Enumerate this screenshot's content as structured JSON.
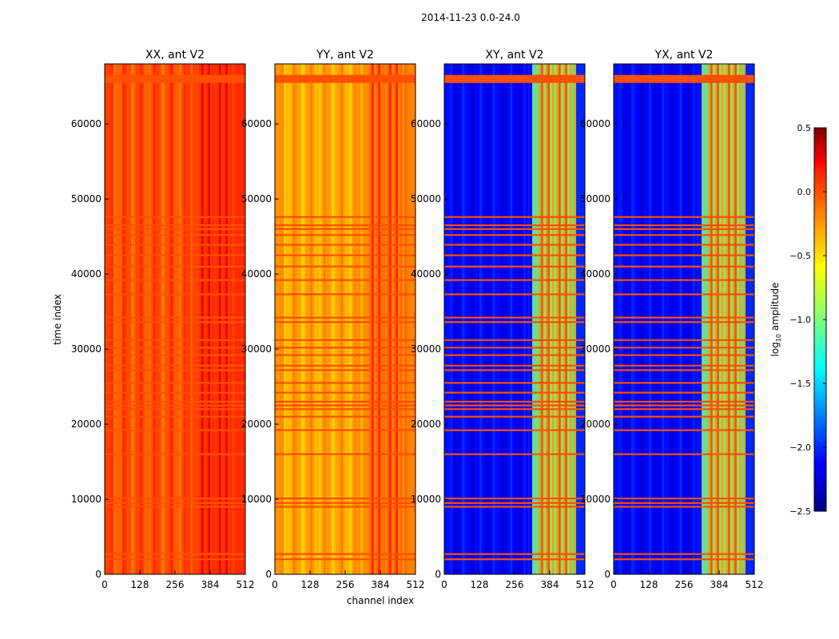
{
  "chart_data": {
    "type": "heatmap",
    "title": "2014-11-23 0.0-24.0",
    "xlabel": "channel index",
    "ylabel": "time index",
    "xlim": [
      0,
      512
    ],
    "ylim": [
      0,
      68000
    ],
    "x_ticks": [
      "0",
      "128",
      "256",
      "384",
      "512"
    ],
    "y_ticks": [
      "0",
      "10000",
      "20000",
      "30000",
      "40000",
      "50000",
      "60000"
    ],
    "panels": [
      {
        "title": "XX, ant V2",
        "background_level": 0.0,
        "band_levels": [
          0.05,
          0.1,
          0.15,
          0.3
        ]
      },
      {
        "title": "YY, ant V2",
        "background_level": -0.3,
        "band_levels": [
          -0.2,
          -0.15,
          -0.05,
          0.2
        ]
      },
      {
        "title": "XY, ant V2",
        "background_level": -2.15,
        "band_levels": [
          -1.0,
          -0.8,
          -0.4,
          -0.1
        ]
      },
      {
        "title": "YX, ant V2",
        "background_level": -2.15,
        "band_levels": [
          -1.0,
          -0.8,
          -0.4,
          -0.1
        ]
      }
    ],
    "flag_level": 0.0,
    "flagged_time_rows": [
      2000,
      2700,
      9000,
      9500,
      10100,
      16000,
      19200,
      21000,
      22000,
      22500,
      23000,
      24200,
      25500,
      27200,
      27800,
      29200,
      30200,
      31200,
      33600,
      34200,
      37300,
      39200,
      41000,
      42500,
      43900,
      45200,
      46000,
      46500,
      47600,
      66000
    ],
    "colorbar": {
      "label": "log",
      "label_sub": "10",
      "label_suffix": " amplitude",
      "ticks": [
        "0.5",
        "0.0",
        "−0.5",
        "−1.0",
        "−1.5",
        "−2.0",
        "−2.5"
      ],
      "range": [
        -2.5,
        0.5
      ],
      "colormap": "jet"
    }
  }
}
